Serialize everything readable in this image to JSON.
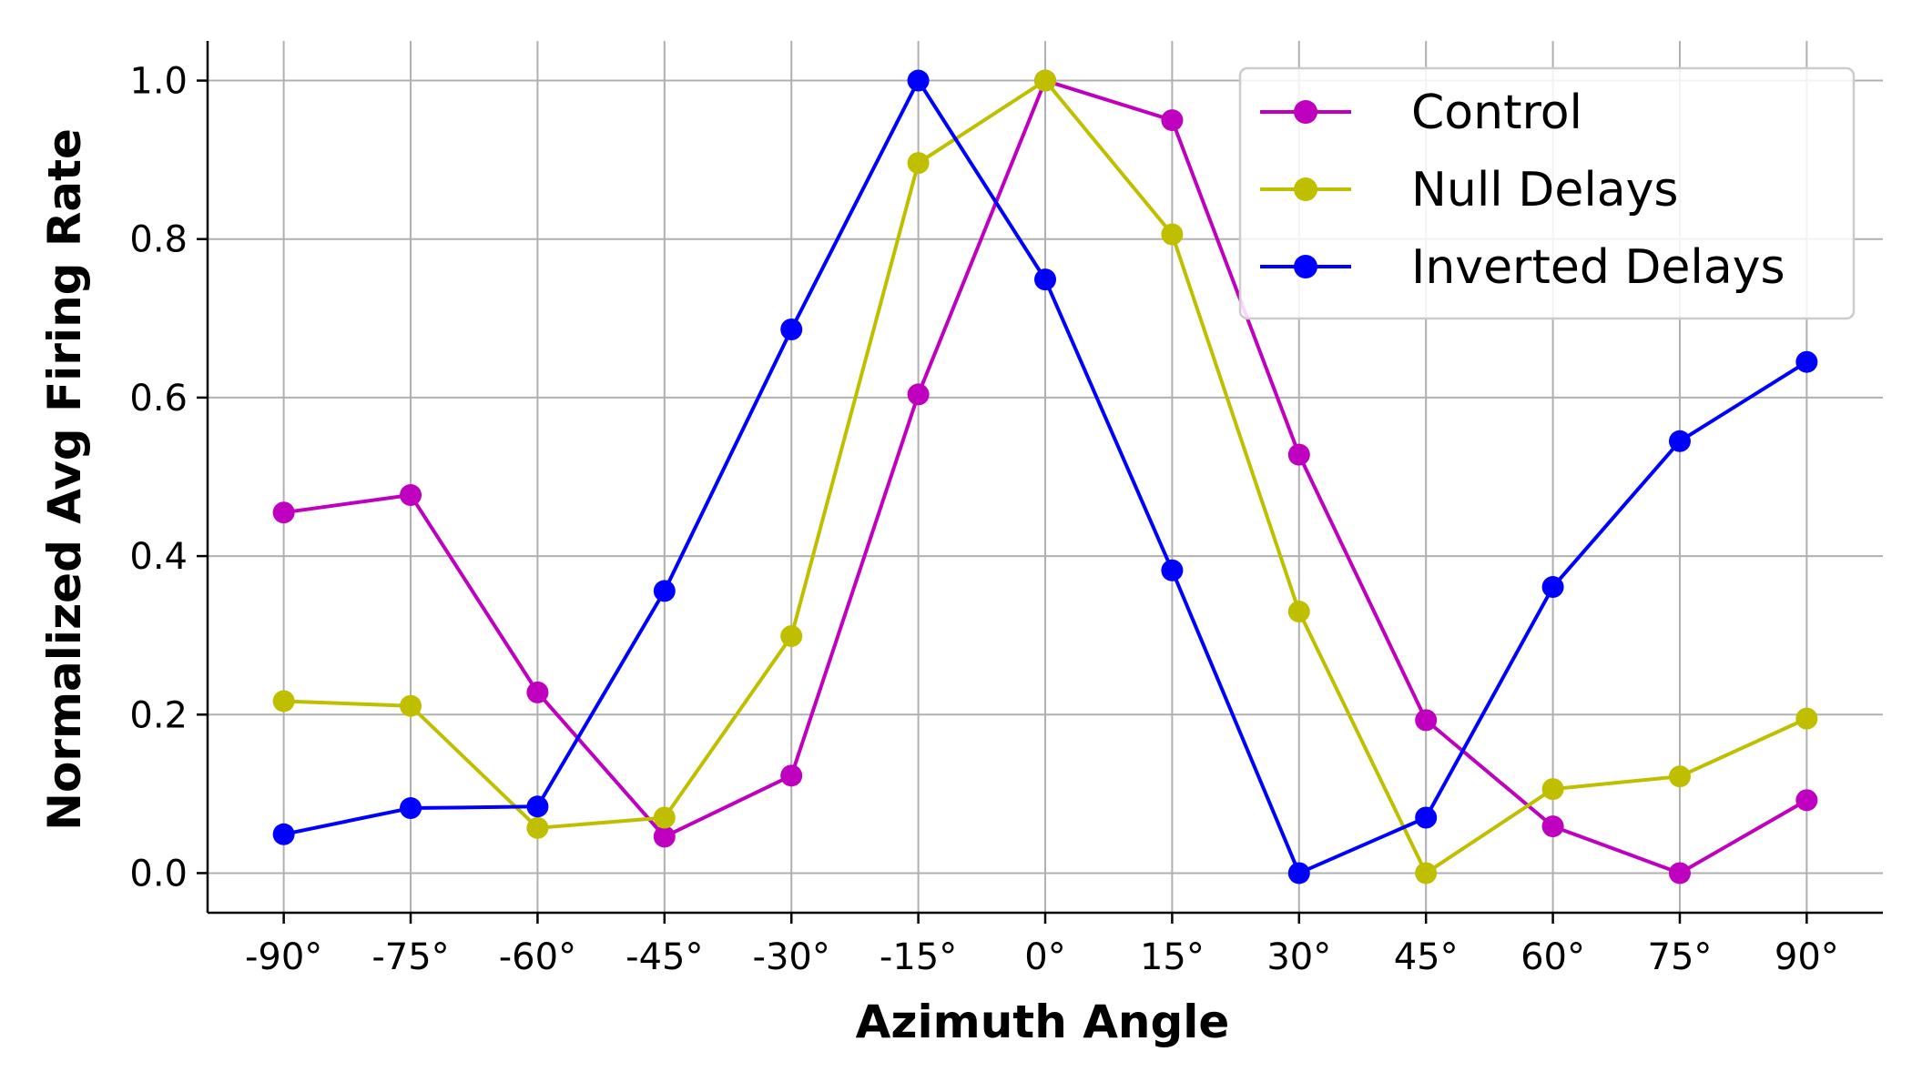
{
  "chart_data": {
    "type": "line",
    "title": "",
    "xlabel": "Azimuth Angle",
    "ylabel": "Normalized Avg Firing Rate",
    "x": [
      -90,
      -75,
      -60,
      -45,
      -30,
      -15,
      0,
      15,
      30,
      45,
      60,
      75,
      90
    ],
    "x_tick_labels": [
      "-90°",
      "-75°",
      "-60°",
      "-45°",
      "-30°",
      "-15°",
      "0°",
      "15°",
      "30°",
      "45°",
      "60°",
      "75°",
      "90°"
    ],
    "y_ticks": [
      0.0,
      0.2,
      0.4,
      0.6,
      0.8,
      1.0
    ],
    "y_tick_labels": [
      "0.0",
      "0.2",
      "0.4",
      "0.6",
      "0.8",
      "1.0"
    ],
    "xlim": [
      -99,
      99
    ],
    "ylim": [
      -0.05,
      1.05
    ],
    "grid": true,
    "legend_position": "top-right",
    "series": [
      {
        "name": "Control",
        "color": "#bf00bf",
        "values": [
          0.455,
          0.477,
          0.228,
          0.046,
          0.123,
          0.604,
          1.0,
          0.95,
          0.528,
          0.193,
          0.059,
          0.0,
          0.092
        ]
      },
      {
        "name": "Null Delays",
        "color": "#bfbf00",
        "values": [
          0.217,
          0.211,
          0.057,
          0.07,
          0.299,
          0.896,
          1.0,
          0.806,
          0.33,
          0.0,
          0.106,
          0.122,
          0.195
        ]
      },
      {
        "name": "Inverted Delays",
        "color": "#0000ff",
        "values": [
          0.049,
          0.082,
          0.084,
          0.356,
          0.686,
          1.0,
          0.749,
          0.382,
          0.0,
          0.07,
          0.361,
          0.545,
          0.645
        ]
      }
    ]
  }
}
